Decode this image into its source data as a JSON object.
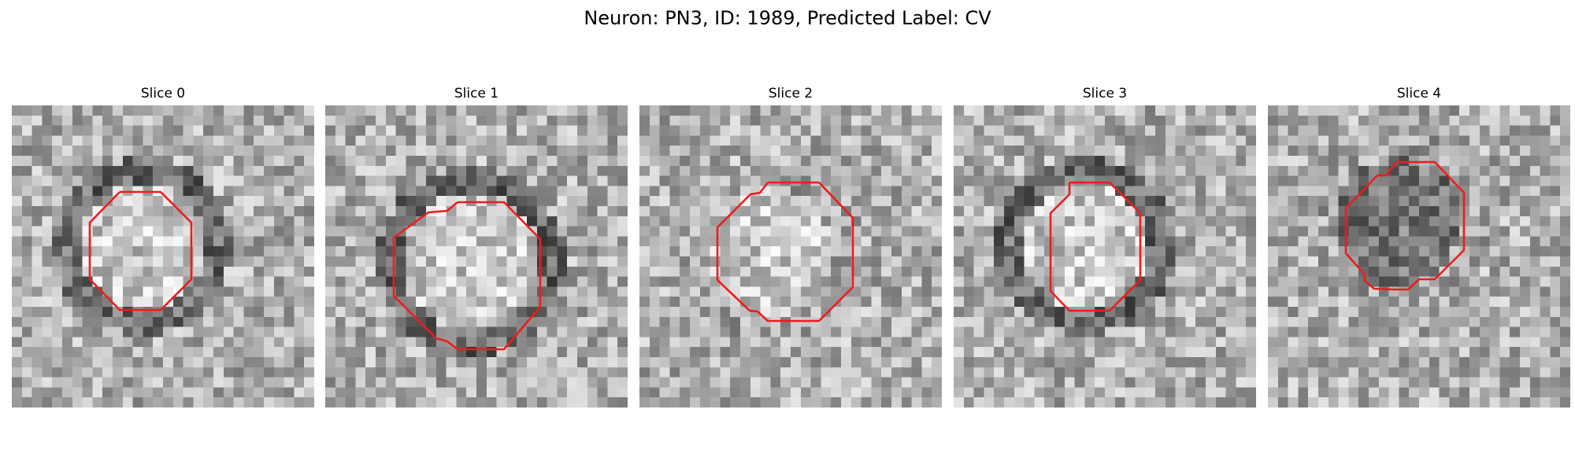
{
  "figure": {
    "title": "Neuron: PN3, ID: 1989, Predicted Label: CV"
  },
  "colors": {
    "contour": "#ee1c1c",
    "background": "#ffffff"
  },
  "panels": [
    {
      "title": "Slice 0",
      "image": "grayscale-microscopy-patch",
      "seed": 11,
      "center": "light",
      "ring": "dark"
    },
    {
      "title": "Slice 1",
      "image": "grayscale-microscopy-patch",
      "seed": 23,
      "center": "light",
      "ring": "dark"
    },
    {
      "title": "Slice 2",
      "image": "grayscale-microscopy-patch",
      "seed": 37,
      "center": "light",
      "ring": "faint"
    },
    {
      "title": "Slice 3",
      "image": "grayscale-microscopy-patch",
      "seed": 41,
      "center": "light",
      "ring": "dark"
    },
    {
      "title": "Slice 4",
      "image": "grayscale-microscopy-patch",
      "seed": 59,
      "center": "dark",
      "ring": "faint"
    }
  ]
}
